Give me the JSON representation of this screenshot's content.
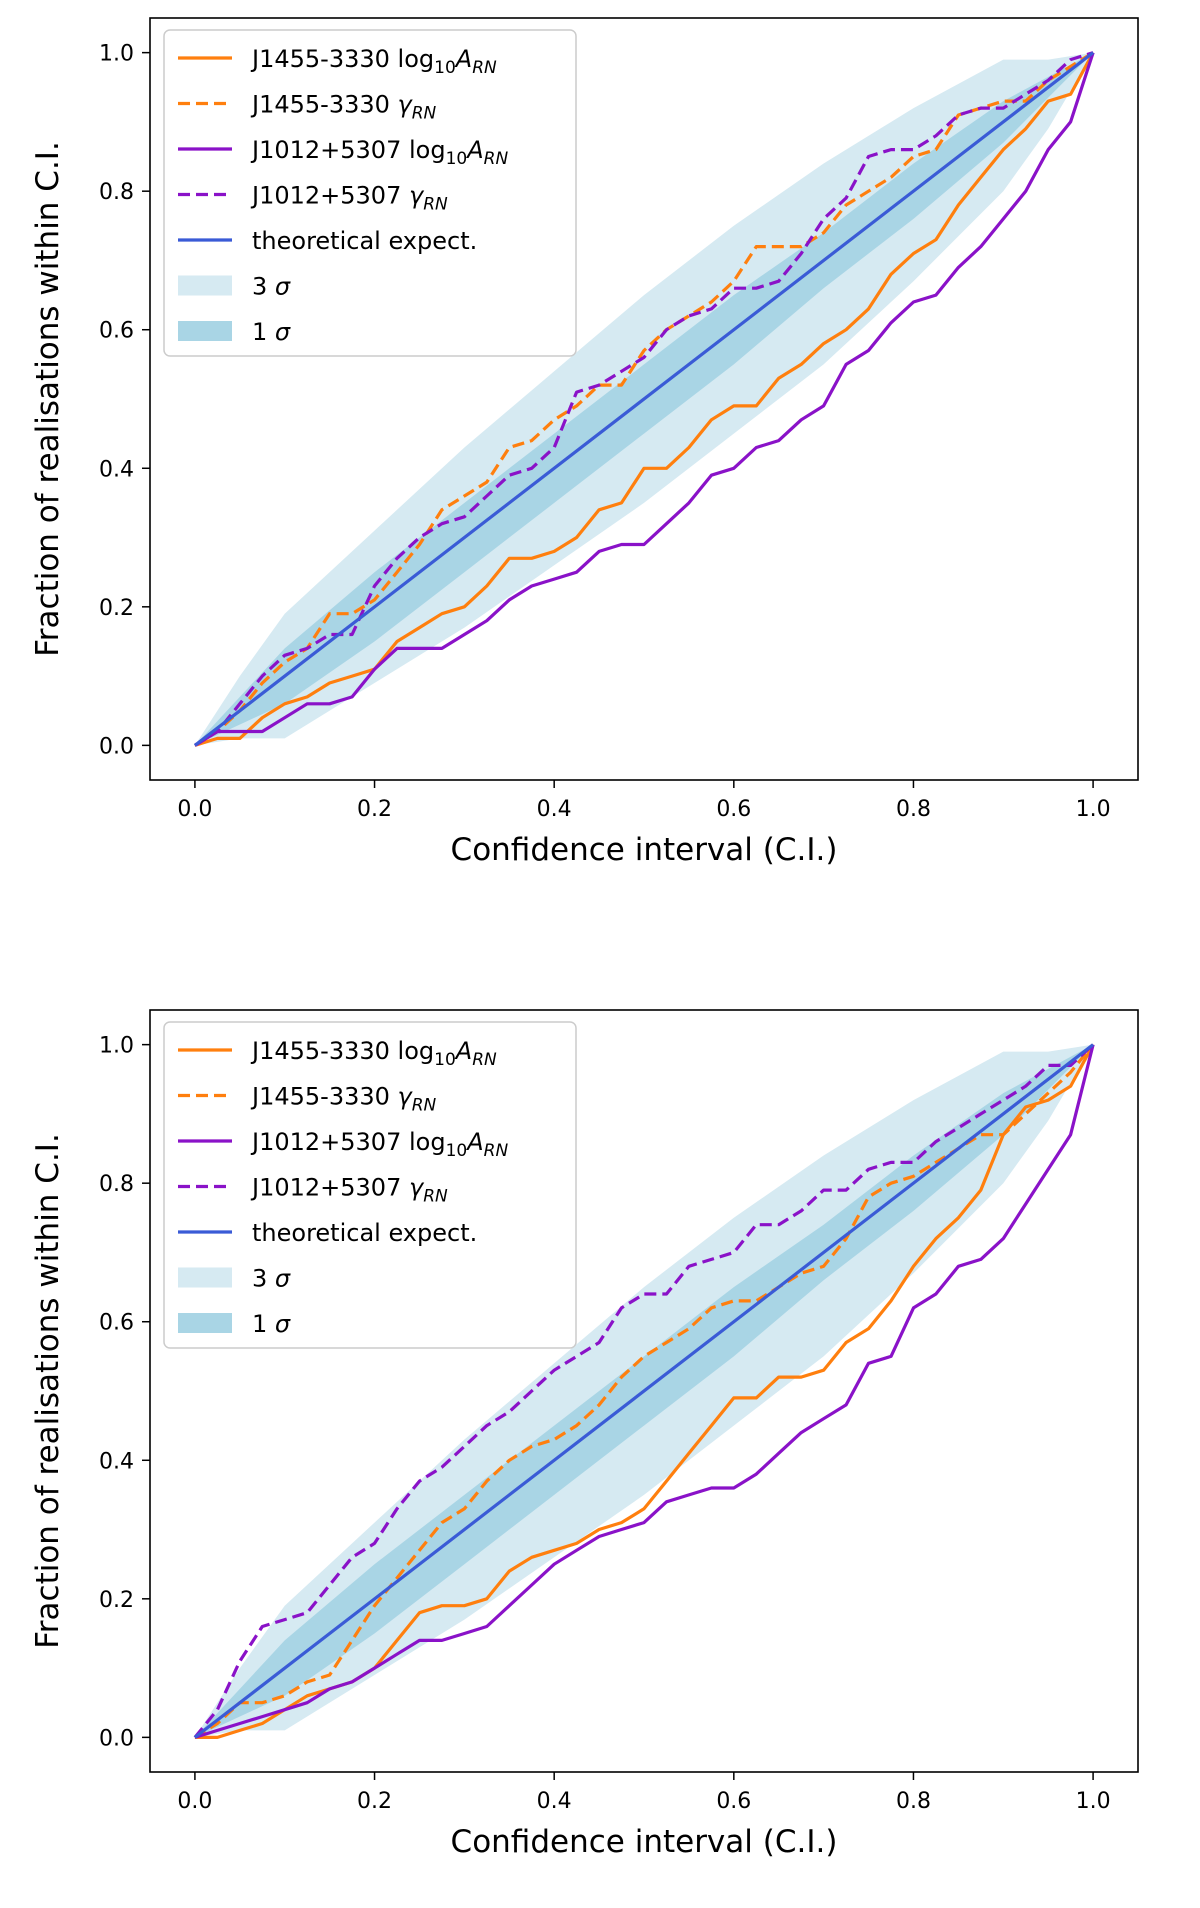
{
  "chart_data": [
    {
      "type": "line",
      "title": "",
      "xlabel": "Confidence interval (C.I.)",
      "ylabel": "Fraction of realisations within C.I.",
      "xlim": [
        -0.05,
        1.05
      ],
      "ylim": [
        -0.05,
        1.05
      ],
      "xticks": [
        "0.0",
        "0.2",
        "0.4",
        "0.6",
        "0.8",
        "1.0"
      ],
      "yticks": [
        "0.0",
        "0.2",
        "0.4",
        "0.6",
        "0.8",
        "1.0"
      ],
      "grid": false,
      "legend_position": "upper-left",
      "legend": {
        "a_name": "J1455-3330",
        "a_param_base": "log",
        "a_param_sub": "10",
        "a_param_sym": "A",
        "a_param_sym_sub": "RN",
        "g_name": "J1455-3330",
        "g_param_sym": "γ",
        "g_param_sym_sub": "RN",
        "c_name": "J1012+5307",
        "c_param_base": "log",
        "c_param_sub": "10",
        "c_param_sym": "A",
        "c_param_sym_sub": "RN",
        "d_name": "J1012+5307",
        "d_param_sym": "γ",
        "d_param_sym_sub": "RN",
        "theory": "theoretical expect.",
        "band3_num": "3",
        "band3_sym": "σ",
        "band1_num": "1",
        "band1_sym": "σ"
      },
      "x": [
        0.0,
        0.025,
        0.05,
        0.075,
        0.1,
        0.125,
        0.15,
        0.175,
        0.2,
        0.225,
        0.25,
        0.275,
        0.3,
        0.325,
        0.35,
        0.375,
        0.4,
        0.425,
        0.45,
        0.475,
        0.5,
        0.525,
        0.55,
        0.575,
        0.6,
        0.625,
        0.65,
        0.675,
        0.7,
        0.725,
        0.75,
        0.775,
        0.8,
        0.825,
        0.85,
        0.875,
        0.9,
        0.925,
        0.95,
        0.975,
        1.0
      ],
      "bands": {
        "sigma3_x": [
          0.0,
          0.05,
          0.1,
          0.2,
          0.3,
          0.4,
          0.5,
          0.6,
          0.7,
          0.8,
          0.9,
          0.95,
          1.0
        ],
        "sigma3_upper": [
          0.0,
          0.1,
          0.19,
          0.31,
          0.43,
          0.54,
          0.65,
          0.75,
          0.84,
          0.92,
          0.99,
          0.99,
          1.0
        ],
        "sigma3_lower": [
          0.0,
          0.01,
          0.01,
          0.09,
          0.17,
          0.26,
          0.35,
          0.45,
          0.55,
          0.67,
          0.8,
          0.89,
          1.0
        ],
        "sigma1_x": [
          0.0,
          0.1,
          0.2,
          0.3,
          0.4,
          0.5,
          0.6,
          0.7,
          0.8,
          0.9,
          1.0
        ],
        "sigma1_upper": [
          0.0,
          0.14,
          0.25,
          0.35,
          0.45,
          0.55,
          0.65,
          0.74,
          0.84,
          0.93,
          1.0
        ],
        "sigma1_lower": [
          0.0,
          0.06,
          0.15,
          0.25,
          0.35,
          0.45,
          0.55,
          0.66,
          0.76,
          0.87,
          1.0
        ]
      },
      "series": [
        {
          "name": "J1455-3330 log10 A_RN",
          "color": "#ff7f0e",
          "style": "solid",
          "values": [
            0.0,
            0.01,
            0.01,
            0.04,
            0.06,
            0.07,
            0.09,
            0.1,
            0.11,
            0.15,
            0.17,
            0.19,
            0.2,
            0.23,
            0.27,
            0.27,
            0.28,
            0.3,
            0.34,
            0.35,
            0.4,
            0.4,
            0.43,
            0.47,
            0.49,
            0.49,
            0.53,
            0.55,
            0.58,
            0.6,
            0.63,
            0.68,
            0.71,
            0.73,
            0.78,
            0.82,
            0.86,
            0.89,
            0.93,
            0.94,
            1.0
          ]
        },
        {
          "name": "J1455-3330 gamma_RN",
          "color": "#ff7f0e",
          "style": "dashed",
          "values": [
            0.0,
            0.02,
            0.05,
            0.09,
            0.12,
            0.14,
            0.19,
            0.19,
            0.21,
            0.25,
            0.29,
            0.34,
            0.36,
            0.38,
            0.43,
            0.44,
            0.47,
            0.49,
            0.52,
            0.52,
            0.57,
            0.6,
            0.62,
            0.64,
            0.67,
            0.72,
            0.72,
            0.72,
            0.74,
            0.78,
            0.8,
            0.82,
            0.85,
            0.86,
            0.91,
            0.92,
            0.93,
            0.93,
            0.96,
            0.98,
            1.0
          ]
        },
        {
          "name": "J1012+5307 log10 A_RN",
          "color": "#8a12c8",
          "style": "solid",
          "values": [
            0.0,
            0.02,
            0.02,
            0.02,
            0.04,
            0.06,
            0.06,
            0.07,
            0.11,
            0.14,
            0.14,
            0.14,
            0.16,
            0.18,
            0.21,
            0.23,
            0.24,
            0.25,
            0.28,
            0.29,
            0.29,
            0.32,
            0.35,
            0.39,
            0.4,
            0.43,
            0.44,
            0.47,
            0.49,
            0.55,
            0.57,
            0.61,
            0.64,
            0.65,
            0.69,
            0.72,
            0.76,
            0.8,
            0.86,
            0.9,
            1.0
          ]
        },
        {
          "name": "J1012+5307 gamma_RN",
          "color": "#8a12c8",
          "style": "dashed",
          "values": [
            0.0,
            0.02,
            0.06,
            0.1,
            0.13,
            0.14,
            0.16,
            0.16,
            0.23,
            0.27,
            0.3,
            0.32,
            0.33,
            0.36,
            0.39,
            0.4,
            0.43,
            0.51,
            0.52,
            0.54,
            0.56,
            0.6,
            0.62,
            0.63,
            0.66,
            0.66,
            0.67,
            0.71,
            0.76,
            0.79,
            0.85,
            0.86,
            0.86,
            0.88,
            0.91,
            0.92,
            0.92,
            0.94,
            0.96,
            0.99,
            1.0
          ]
        },
        {
          "name": "theoretical expect.",
          "color": "#3a5bd6",
          "style": "solid",
          "values": [
            0.0,
            1.0
          ],
          "x": [
            0.0,
            1.0
          ]
        }
      ]
    },
    {
      "type": "line",
      "title": "",
      "xlabel": "Confidence interval (C.I.)",
      "ylabel": "Fraction of realisations within C.I.",
      "xlim": [
        -0.05,
        1.05
      ],
      "ylim": [
        -0.05,
        1.05
      ],
      "xticks": [
        "0.0",
        "0.2",
        "0.4",
        "0.6",
        "0.8",
        "1.0"
      ],
      "yticks": [
        "0.0",
        "0.2",
        "0.4",
        "0.6",
        "0.8",
        "1.0"
      ],
      "grid": false,
      "legend_position": "upper-left",
      "legend": {
        "a_name": "J1455-3330",
        "a_param_base": "log",
        "a_param_sub": "10",
        "a_param_sym": "A",
        "a_param_sym_sub": "RN",
        "g_name": "J1455-3330",
        "g_param_sym": "γ",
        "g_param_sym_sub": "RN",
        "c_name": "J1012+5307",
        "c_param_base": "log",
        "c_param_sub": "10",
        "c_param_sym": "A",
        "c_param_sym_sub": "RN",
        "d_name": "J1012+5307",
        "d_param_sym": "γ",
        "d_param_sym_sub": "RN",
        "theory": "theoretical expect.",
        "band3_num": "3",
        "band3_sym": "σ",
        "band1_num": "1",
        "band1_sym": "σ"
      },
      "x": [
        0.0,
        0.025,
        0.05,
        0.075,
        0.1,
        0.125,
        0.15,
        0.175,
        0.2,
        0.225,
        0.25,
        0.275,
        0.3,
        0.325,
        0.35,
        0.375,
        0.4,
        0.425,
        0.45,
        0.475,
        0.5,
        0.525,
        0.55,
        0.575,
        0.6,
        0.625,
        0.65,
        0.675,
        0.7,
        0.725,
        0.75,
        0.775,
        0.8,
        0.825,
        0.85,
        0.875,
        0.9,
        0.925,
        0.95,
        0.975,
        1.0
      ],
      "bands": {
        "sigma3_x": [
          0.0,
          0.05,
          0.1,
          0.2,
          0.3,
          0.4,
          0.5,
          0.6,
          0.7,
          0.8,
          0.9,
          0.95,
          1.0
        ],
        "sigma3_upper": [
          0.0,
          0.1,
          0.19,
          0.31,
          0.43,
          0.54,
          0.65,
          0.75,
          0.84,
          0.92,
          0.99,
          0.99,
          1.0
        ],
        "sigma3_lower": [
          0.0,
          0.01,
          0.01,
          0.09,
          0.17,
          0.26,
          0.35,
          0.45,
          0.55,
          0.67,
          0.8,
          0.89,
          1.0
        ],
        "sigma1_x": [
          0.0,
          0.1,
          0.2,
          0.3,
          0.4,
          0.5,
          0.6,
          0.7,
          0.8,
          0.9,
          1.0
        ],
        "sigma1_upper": [
          0.0,
          0.14,
          0.25,
          0.35,
          0.45,
          0.55,
          0.65,
          0.74,
          0.84,
          0.93,
          1.0
        ],
        "sigma1_lower": [
          0.0,
          0.06,
          0.15,
          0.25,
          0.35,
          0.45,
          0.55,
          0.66,
          0.76,
          0.87,
          1.0
        ]
      },
      "series": [
        {
          "name": "J1455-3330 log10 A_RN",
          "color": "#ff7f0e",
          "style": "solid",
          "values": [
            0.0,
            0.0,
            0.01,
            0.02,
            0.04,
            0.06,
            0.07,
            0.08,
            0.1,
            0.14,
            0.18,
            0.19,
            0.19,
            0.2,
            0.24,
            0.26,
            0.27,
            0.28,
            0.3,
            0.31,
            0.33,
            0.37,
            0.41,
            0.45,
            0.49,
            0.49,
            0.52,
            0.52,
            0.53,
            0.57,
            0.59,
            0.63,
            0.68,
            0.72,
            0.75,
            0.79,
            0.87,
            0.91,
            0.92,
            0.94,
            1.0
          ]
        },
        {
          "name": "J1455-3330 gamma_RN",
          "color": "#ff7f0e",
          "style": "dashed",
          "values": [
            0.0,
            0.02,
            0.05,
            0.05,
            0.06,
            0.08,
            0.09,
            0.14,
            0.19,
            0.23,
            0.27,
            0.31,
            0.33,
            0.37,
            0.4,
            0.42,
            0.43,
            0.45,
            0.48,
            0.52,
            0.55,
            0.57,
            0.59,
            0.62,
            0.63,
            0.63,
            0.65,
            0.67,
            0.68,
            0.72,
            0.78,
            0.8,
            0.81,
            0.83,
            0.85,
            0.87,
            0.87,
            0.9,
            0.93,
            0.96,
            1.0
          ]
        },
        {
          "name": "J1012+5307 log10 A_RN",
          "color": "#8a12c8",
          "style": "solid",
          "values": [
            0.0,
            0.01,
            0.02,
            0.03,
            0.04,
            0.05,
            0.07,
            0.08,
            0.1,
            0.12,
            0.14,
            0.14,
            0.15,
            0.16,
            0.19,
            0.22,
            0.25,
            0.27,
            0.29,
            0.3,
            0.31,
            0.34,
            0.35,
            0.36,
            0.36,
            0.38,
            0.41,
            0.44,
            0.46,
            0.48,
            0.54,
            0.55,
            0.62,
            0.64,
            0.68,
            0.69,
            0.72,
            0.77,
            0.82,
            0.87,
            1.0
          ]
        },
        {
          "name": "J1012+5307 gamma_RN",
          "color": "#8a12c8",
          "style": "dashed",
          "values": [
            0.0,
            0.04,
            0.11,
            0.16,
            0.17,
            0.18,
            0.22,
            0.26,
            0.28,
            0.33,
            0.37,
            0.39,
            0.42,
            0.45,
            0.47,
            0.5,
            0.53,
            0.55,
            0.57,
            0.62,
            0.64,
            0.64,
            0.68,
            0.69,
            0.7,
            0.74,
            0.74,
            0.76,
            0.79,
            0.79,
            0.82,
            0.83,
            0.83,
            0.86,
            0.88,
            0.9,
            0.92,
            0.94,
            0.97,
            0.97,
            1.0
          ]
        },
        {
          "name": "theoretical expect.",
          "color": "#3a5bd6",
          "style": "solid",
          "values": [
            0.0,
            1.0
          ],
          "x": [
            0.0,
            1.0
          ]
        }
      ]
    }
  ]
}
